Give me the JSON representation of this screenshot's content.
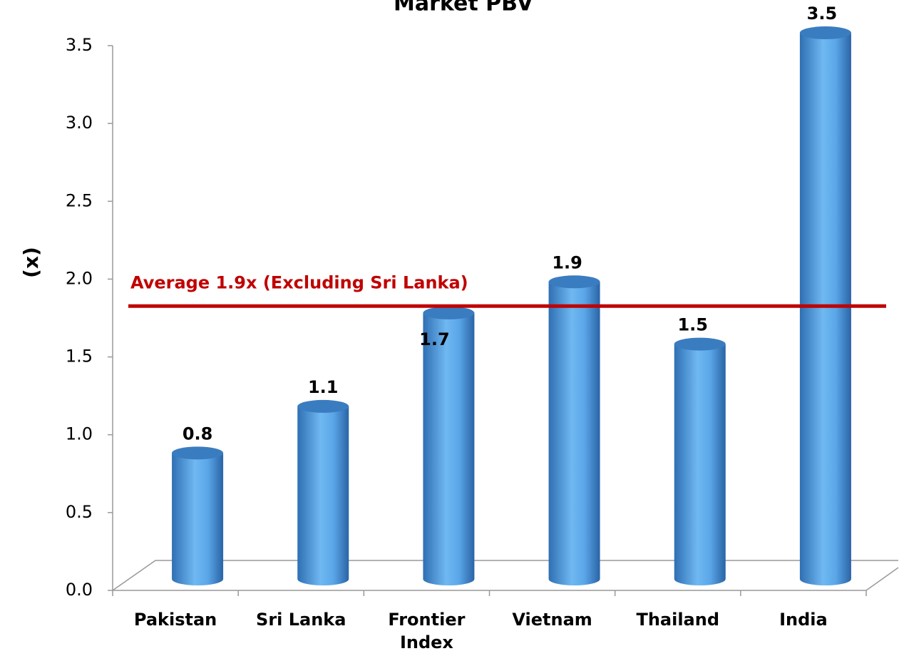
{
  "chart_data": {
    "type": "bar",
    "title": "Market PBV",
    "y_label": "(x)",
    "categories": [
      "Pakistan",
      "Sri Lanka",
      "Frontier Index",
      "Vietnam",
      "Thailand",
      "India"
    ],
    "values": [
      0.8,
      1.1,
      1.7,
      1.9,
      1.5,
      3.5
    ],
    "color": "#4a90d9",
    "ylim": [
      0,
      3.5
    ],
    "yticks": [
      {
        "value": 0,
        "label": "0.0"
      },
      0.5,
      {
        "value": 1,
        "label": "1.0"
      },
      1.5,
      {
        "value": 2,
        "label": "2.0"
      },
      2.5,
      {
        "value": 3,
        "label": "3.0"
      },
      3.5
    ],
    "reference_line": {
      "value": 1.9,
      "label": "Average 1.9x (Excluding Sri Lanka)",
      "color": "#c00000"
    }
  }
}
